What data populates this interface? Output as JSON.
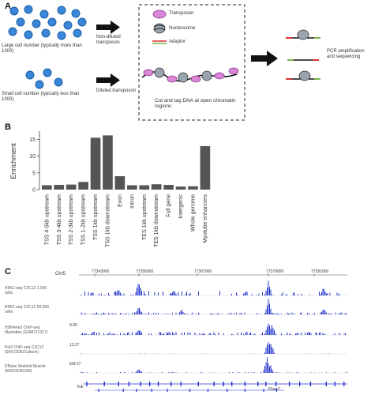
{
  "panels": {
    "a": {
      "label": "A",
      "large_cells_caption": "Large cell number (typically more than 1000)",
      "small_cells_caption": "Small cell number (typically less than 1000)",
      "nondiluted": "Non-diluted transposon",
      "diluted": "Diluted transposon",
      "legend": {
        "transposon": "Transposon",
        "nucleosome": "Nucleosome",
        "adaptor": "Adaptor"
      },
      "cut_tag": "Cut and tag DNA at open chromatin regions",
      "pcr": "PCR amplification and sequencing",
      "colors": {
        "cell": "#3a86d8",
        "transposon": "#d985d8",
        "adaptor_red": "#d33",
        "adaptor_green": "#7ab648"
      }
    },
    "b": {
      "label": "B"
    },
    "c": {
      "label": "C",
      "chrom": "Chr5",
      "coords": [
        "77343000",
        "77355000",
        "77367000",
        "77379000",
        "77391000"
      ],
      "tracks": [
        {
          "label": "ATAC-seq C2C12 1,000 cells",
          "max": ""
        },
        {
          "label": "ATAC-seq C2C12 50,000 cells",
          "max": ""
        },
        {
          "label": "H3K4me3 ChIP-seq Myotubes (GSM721317)",
          "max": "0.05"
        },
        {
          "label": "Pol2 ChIP-seq C2C12 (ENCODE/Caltech)",
          "max": "13.27"
        },
        {
          "label": "DNase Skeletal Muscle (ENCODE/UW)",
          "max": "EM 27"
        }
      ],
      "genes": [
        "Kdr",
        "Fbxw7"
      ],
      "colors": {
        "signal": "#2233cc"
      }
    }
  },
  "chart_data": {
    "type": "bar",
    "ylabel": "Enrichment",
    "ylim": [
      0,
      17
    ],
    "yticks": [
      0,
      5,
      10,
      15
    ],
    "categories": [
      "TSS 4-5kb upstream",
      "TSS 3-4kb upstream",
      "TSS 2-3kb upstream",
      "TSS 1-2kb upstream",
      "TSS 1kb upstream",
      "TSS 1kb downstream",
      "Exon",
      "Intron",
      "TES 1kb upstream",
      "TES 1kb downstream",
      "Full gene",
      "Intergenic",
      "Whole genome",
      "Myotube enhancers"
    ],
    "values": [
      1.3,
      1.4,
      1.5,
      2.3,
      15.5,
      16.2,
      4.0,
      1.3,
      1.3,
      1.6,
      1.4,
      0.9,
      1.0,
      13.0
    ],
    "bar_color": "#555555"
  }
}
